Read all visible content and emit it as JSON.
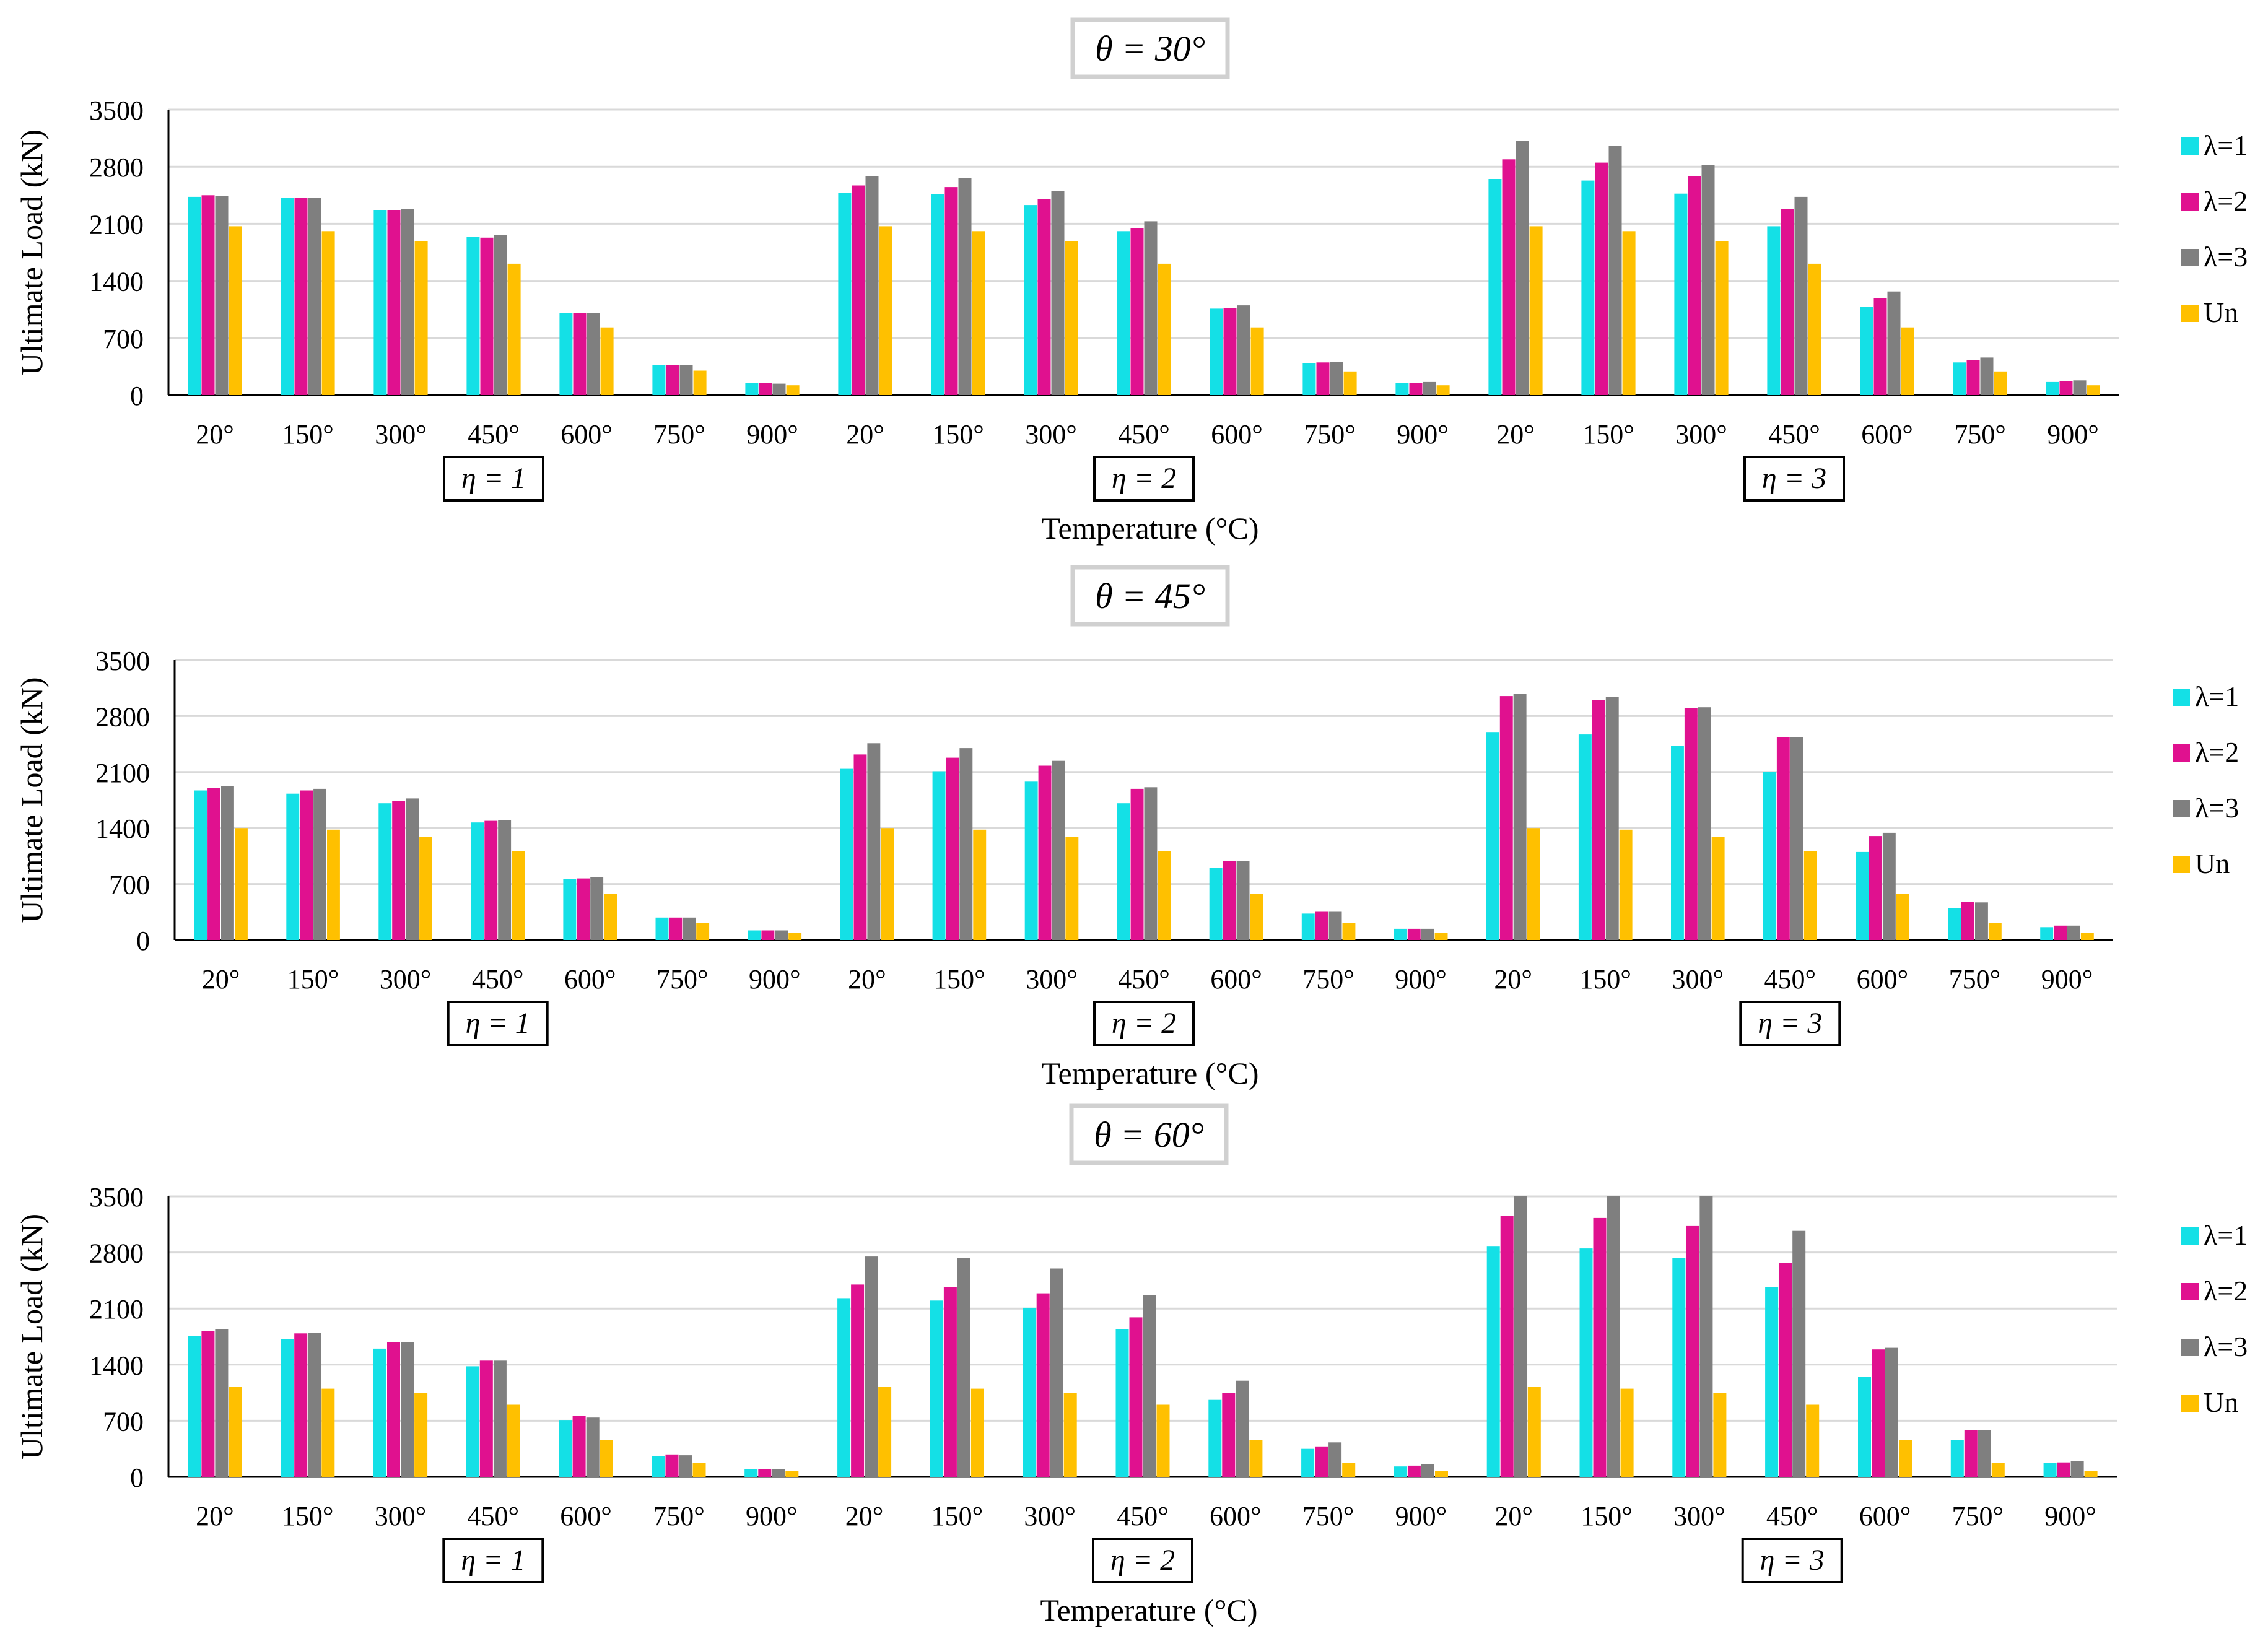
{
  "legend": [
    "λ=1",
    "λ=2",
    "λ=3",
    "Un"
  ],
  "colors": {
    "lambda1": "#14E0E6",
    "lambda2": "#E0118F",
    "lambda3": "#7F7F7F",
    "un": "#FFC000",
    "grid": "#D9D9D9",
    "axis": "#000000"
  },
  "chart_data": [
    {
      "type": "bar",
      "title": "θ = 30°",
      "xlabel": "Temperature (°C)",
      "ylabel": "Ultimate Load (kN)",
      "ylim": [
        0,
        3500
      ],
      "yticks": [
        0,
        700,
        1400,
        2100,
        2800,
        3500
      ],
      "group_labels": [
        "η = 1",
        "η = 2",
        "η = 3"
      ],
      "categories": [
        "20°",
        "150°",
        "300°",
        "450°",
        "600°",
        "750°",
        "900°",
        "20°",
        "150°",
        "300°",
        "450°",
        "600°",
        "750°",
        "900°",
        "20°",
        "150°",
        "300°",
        "450°",
        "600°",
        "750°",
        "900°"
      ],
      "series": [
        {
          "name": "λ=1",
          "values": [
            2430,
            2420,
            2270,
            1940,
            1010,
            370,
            150,
            2480,
            2460,
            2330,
            2010,
            1060,
            390,
            150,
            2650,
            2630,
            2470,
            2070,
            1080,
            400,
            160
          ]
        },
        {
          "name": "λ=2",
          "values": [
            2450,
            2420,
            2270,
            1930,
            1010,
            370,
            150,
            2570,
            2550,
            2400,
            2050,
            1070,
            400,
            150,
            2890,
            2850,
            2680,
            2280,
            1190,
            430,
            170
          ]
        },
        {
          "name": "λ=3",
          "values": [
            2440,
            2420,
            2280,
            1960,
            1010,
            370,
            140,
            2680,
            2660,
            2500,
            2130,
            1100,
            410,
            160,
            3120,
            3060,
            2820,
            2430,
            1270,
            460,
            180
          ]
        },
        {
          "name": "Un",
          "values": [
            2070,
            2010,
            1890,
            1610,
            830,
            300,
            120,
            2070,
            2010,
            1890,
            1610,
            830,
            290,
            120,
            2070,
            2010,
            1890,
            1610,
            830,
            290,
            120
          ]
        }
      ]
    },
    {
      "type": "bar",
      "title": "θ = 45°",
      "xlabel": "Temperature (°C)",
      "ylabel": "Ultimate Load (kN)",
      "ylim": [
        0,
        3500
      ],
      "yticks": [
        0,
        700,
        1400,
        2100,
        2800,
        3500
      ],
      "group_labels": [
        "η = 1",
        "η = 2",
        "η = 3"
      ],
      "categories": [
        "20°",
        "150°",
        "300°",
        "450°",
        "600°",
        "750°",
        "900°",
        "20°",
        "150°",
        "300°",
        "450°",
        "600°",
        "750°",
        "900°",
        "20°",
        "150°",
        "300°",
        "450°",
        "600°",
        "750°",
        "900°"
      ],
      "series": [
        {
          "name": "λ=1",
          "values": [
            1870,
            1830,
            1710,
            1470,
            760,
            280,
            120,
            2140,
            2110,
            1980,
            1710,
            900,
            330,
            140,
            2600,
            2570,
            2430,
            2100,
            1100,
            400,
            160
          ]
        },
        {
          "name": "λ=2",
          "values": [
            1900,
            1870,
            1740,
            1490,
            770,
            280,
            120,
            2320,
            2280,
            2180,
            1890,
            990,
            360,
            140,
            3050,
            3000,
            2900,
            2540,
            1300,
            480,
            180
          ]
        },
        {
          "name": "λ=3",
          "values": [
            1920,
            1890,
            1770,
            1500,
            790,
            280,
            120,
            2460,
            2400,
            2240,
            1910,
            990,
            360,
            140,
            3080,
            3040,
            2910,
            2540,
            1340,
            470,
            180
          ]
        },
        {
          "name": "Un",
          "values": [
            1400,
            1380,
            1290,
            1110,
            580,
            210,
            90,
            1400,
            1380,
            1290,
            1110,
            580,
            210,
            90,
            1400,
            1380,
            1290,
            1110,
            580,
            210,
            90
          ]
        }
      ]
    },
    {
      "type": "bar",
      "title": "θ = 60°",
      "xlabel": "Temperature (°C)",
      "ylabel": "Ultimate Load (kN)",
      "ylim": [
        0,
        3500
      ],
      "yticks": [
        0,
        700,
        1400,
        2100,
        2800,
        3500
      ],
      "group_labels": [
        "η = 1",
        "η = 2",
        "η = 3"
      ],
      "categories": [
        "20°",
        "150°",
        "300°",
        "450°",
        "600°",
        "750°",
        "900°",
        "20°",
        "150°",
        "300°",
        "450°",
        "600°",
        "750°",
        "900°",
        "20°",
        "150°",
        "300°",
        "450°",
        "600°",
        "750°",
        "900°"
      ],
      "series": [
        {
          "name": "λ=1",
          "values": [
            1760,
            1720,
            1600,
            1380,
            710,
            260,
            100,
            2230,
            2200,
            2110,
            1840,
            960,
            350,
            130,
            2880,
            2850,
            2730,
            2370,
            1250,
            460,
            170
          ]
        },
        {
          "name": "λ=2",
          "values": [
            1820,
            1790,
            1680,
            1450,
            760,
            280,
            100,
            2400,
            2370,
            2290,
            1990,
            1050,
            380,
            140,
            3260,
            3230,
            3130,
            2670,
            1590,
            580,
            180
          ]
        },
        {
          "name": "λ=3",
          "values": [
            1840,
            1800,
            1680,
            1450,
            740,
            270,
            100,
            2750,
            2730,
            2600,
            2270,
            1200,
            430,
            160,
            3500,
            3500,
            3500,
            3070,
            1610,
            580,
            200
          ]
        },
        {
          "name": "Un",
          "values": [
            1120,
            1100,
            1050,
            900,
            460,
            170,
            70,
            1120,
            1100,
            1050,
            900,
            460,
            170,
            70,
            1120,
            1100,
            1050,
            900,
            460,
            170,
            70
          ]
        }
      ]
    }
  ]
}
